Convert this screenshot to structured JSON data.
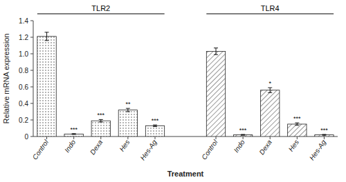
{
  "chart_data": {
    "type": "bar",
    "categories": [
      "Control",
      "Indo",
      "Dexa",
      "Hes",
      "Hes-Ag"
    ],
    "series": [
      {
        "name": "TLR2",
        "values": [
          1.21,
          0.03,
          0.19,
          0.32,
          0.13
        ],
        "errors": [
          0.05,
          0.005,
          0.015,
          0.02,
          0.01
        ],
        "significance": [
          null,
          "***",
          "***",
          "**",
          "***"
        ]
      },
      {
        "name": "TLR4",
        "values": [
          1.03,
          0.02,
          0.56,
          0.15,
          0.02
        ],
        "errors": [
          0.04,
          0.005,
          0.03,
          0.015,
          0.005
        ],
        "significance": [
          null,
          "***",
          "*",
          "***",
          "***"
        ]
      }
    ],
    "xlabel": "Treatment",
    "ylabel": "Relative mRNA expression",
    "ylim": [
      0,
      1.4
    ],
    "yticks": [
      0,
      0.2,
      0.4,
      0.6,
      0.8,
      {
        "value": 1.0,
        "label": "1.0"
      },
      1.2,
      1.4
    ],
    "grid": false
  }
}
